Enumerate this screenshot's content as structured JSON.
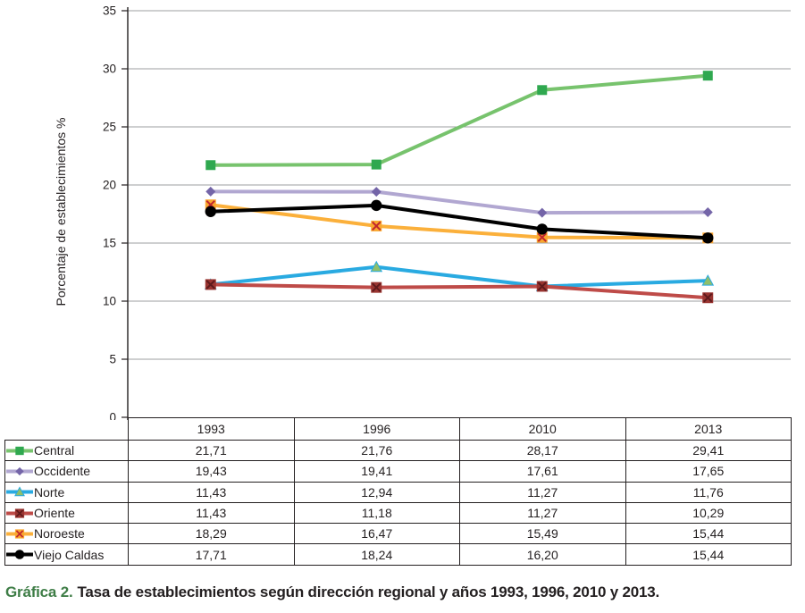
{
  "figure": {
    "caption_label": "Gráfica 2.",
    "caption_text": "Tasa de establecimientos según dirección regional y años 1993, 1996, 2010 y 2013."
  },
  "chart_data": {
    "type": "line",
    "title": "",
    "xlabel": "",
    "ylabel": "Porcentaje de establecimientos %",
    "categories": [
      "1993",
      "1996",
      "2010",
      "2013"
    ],
    "ylim": [
      0,
      35
    ],
    "ytick_step": 5,
    "ytick_labels": [
      "0",
      "5",
      "10",
      "15",
      "20",
      "25",
      "30",
      "35"
    ],
    "grid": true,
    "legend_position": "table-left-column",
    "series": [
      {
        "name": "Central",
        "marker": "square",
        "line_color": "#77C36D",
        "marker_color": "#2FA84F",
        "values": [
          21.71,
          21.76,
          28.17,
          29.41
        ],
        "display": [
          "21,71",
          "21,76",
          "28,17",
          "29,41"
        ]
      },
      {
        "name": "Occidente",
        "marker": "diamond",
        "line_color": "#B1A7D1",
        "marker_color": "#7465A8",
        "values": [
          19.43,
          19.41,
          17.61,
          17.65
        ],
        "display": [
          "19,43",
          "19,41",
          "17,61",
          "17,65"
        ]
      },
      {
        "name": "Norte",
        "marker": "triangle",
        "line_color": "#29AAE1",
        "marker_color": "#8FBF6B",
        "values": [
          11.43,
          12.94,
          11.27,
          11.76
        ],
        "display": [
          "11,43",
          "12,94",
          "11,27",
          "11,76"
        ]
      },
      {
        "name": "Oriente",
        "marker": "xbox",
        "line_color": "#BE4B48",
        "marker_color": "#9A3531",
        "x_color": "#5E1A1C",
        "values": [
          11.43,
          11.18,
          11.27,
          10.29
        ],
        "display": [
          "11,43",
          "11,18",
          "11,27",
          "10,29"
        ]
      },
      {
        "name": "Noroeste",
        "marker": "xbox",
        "line_color": "#FBB03B",
        "marker_color": "#F9A82E",
        "x_color": "#C1272D",
        "values": [
          18.29,
          16.47,
          15.49,
          15.44
        ],
        "display": [
          "18,29",
          "16,47",
          "15,49",
          "15,44"
        ]
      },
      {
        "name": "Viejo Caldas",
        "marker": "circle",
        "line_color": "#000000",
        "marker_color": "#000000",
        "values": [
          17.71,
          18.24,
          16.2,
          15.44
        ],
        "display": [
          "17,71",
          "18,24",
          "16,20",
          "15,44"
        ]
      }
    ],
    "colors": {
      "grid": "#9D9FA2",
      "axis": "#231F20",
      "text": "#231F20",
      "caption_accent": "#3E7D46"
    }
  }
}
